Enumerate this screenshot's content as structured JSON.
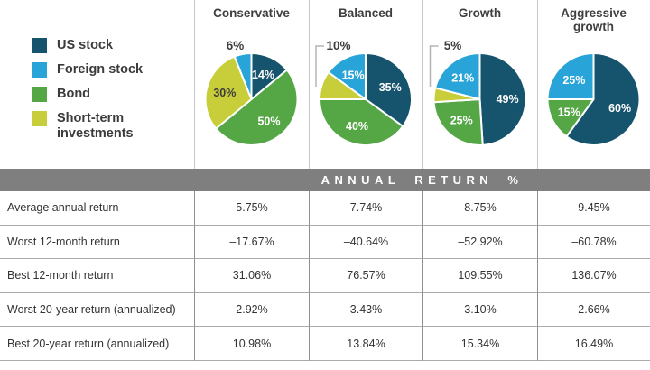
{
  "legend": {
    "items": [
      {
        "label": "US stock",
        "color": "#16546e"
      },
      {
        "label": "Foreign stock",
        "color": "#29a4d9"
      },
      {
        "label": "Bond",
        "color": "#55a746"
      },
      {
        "label": "Short-term investments",
        "color": "#c8ce39"
      }
    ]
  },
  "band": {
    "title": "ANNUAL RETURN %",
    "background": "#7f7f7f"
  },
  "chart_data": {
    "type": "pie",
    "legend": [
      "US stock",
      "Foreign stock",
      "Bond",
      "Short-term investments"
    ],
    "colors": {
      "US stock": "#16546e",
      "Foreign stock": "#29a4d9",
      "Bond": "#55a746",
      "Short-term investments": "#c8ce39"
    },
    "note": "slices listed clockwise from 12 o'clock; values are percent",
    "pies": [
      {
        "title": "Conservative",
        "slices": [
          {
            "name": "US stock",
            "value": 14
          },
          {
            "name": "Bond",
            "value": 50
          },
          {
            "name": "Short-term investments",
            "value": 30
          },
          {
            "name": "Foreign stock",
            "value": 6,
            "outside": true
          }
        ]
      },
      {
        "title": "Balanced",
        "slices": [
          {
            "name": "US stock",
            "value": 35
          },
          {
            "name": "Bond",
            "value": 40
          },
          {
            "name": "Short-term investments",
            "value": 10,
            "outside": true,
            "callout": true
          },
          {
            "name": "Foreign stock",
            "value": 15
          }
        ]
      },
      {
        "title": "Growth",
        "slices": [
          {
            "name": "US stock",
            "value": 49
          },
          {
            "name": "Bond",
            "value": 25
          },
          {
            "name": "Short-term investments",
            "value": 5,
            "outside": true,
            "callout": true
          },
          {
            "name": "Foreign stock",
            "value": 21
          }
        ]
      },
      {
        "title": "Aggressive growth",
        "slices": [
          {
            "name": "US stock",
            "value": 60
          },
          {
            "name": "Bond",
            "value": 15
          },
          {
            "name": "Foreign stock",
            "value": 25
          }
        ]
      }
    ]
  },
  "table": {
    "rows": [
      {
        "label": "Average annual return",
        "values": [
          "5.75%",
          "7.74%",
          "8.75%",
          "9.45%"
        ]
      },
      {
        "label": "Worst 12-month return",
        "values": [
          "–17.67%",
          "–40.64%",
          "–52.92%",
          "–60.78%"
        ]
      },
      {
        "label": "Best 12-month return",
        "values": [
          "31.06%",
          "76.57%",
          "109.55%",
          "136.07%"
        ]
      },
      {
        "label": "Worst 20-year return (annualized)",
        "values": [
          "2.92%",
          "3.43%",
          "3.10%",
          "2.66%"
        ]
      },
      {
        "label": "Best 20-year return (annualized)",
        "values": [
          "10.98%",
          "13.84%",
          "15.34%",
          "16.49%"
        ]
      }
    ]
  }
}
